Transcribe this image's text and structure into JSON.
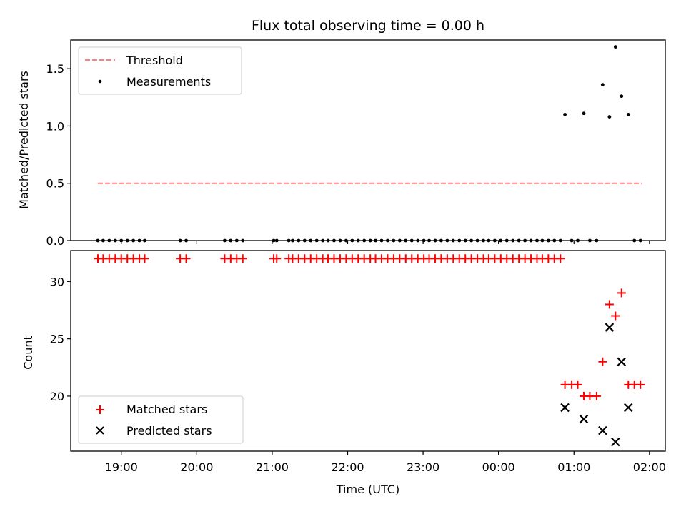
{
  "chart_data": [
    {
      "type": "scatter",
      "title": "Flux total observing time = 0.00 h",
      "xlabel": "",
      "ylabel": "Matched/Predicted stars",
      "ylim": [
        0,
        1.75
      ],
      "xlim": [
        -0.67,
        7.21
      ],
      "x_unit": "hours after 19:00 UTC",
      "yticks": [
        0.0,
        0.5,
        1.0,
        1.5
      ],
      "ytick_labels": [
        "0.0",
        "0.5",
        "1.0",
        "1.5"
      ],
      "legend_position": "top-left",
      "threshold": {
        "name": "Threshold",
        "y": 0.5,
        "x_range": [
          -0.31,
          6.9
        ],
        "color": "#ff7f7f",
        "style": "dashed"
      },
      "series": [
        {
          "name": "Measurements",
          "color": "#000000",
          "points": [
            [
              -0.31,
              0
            ],
            [
              -0.24,
              0
            ],
            [
              -0.16,
              0
            ],
            [
              -0.08,
              0
            ],
            [
              0.0,
              0
            ],
            [
              0.08,
              0
            ],
            [
              0.16,
              0
            ],
            [
              0.24,
              0
            ],
            [
              0.31,
              0
            ],
            [
              0.78,
              0
            ],
            [
              0.86,
              0
            ],
            [
              1.37,
              0
            ],
            [
              1.45,
              0
            ],
            [
              1.53,
              0
            ],
            [
              1.61,
              0
            ],
            [
              2.02,
              0
            ],
            [
              2.06,
              0
            ],
            [
              2.22,
              0
            ],
            [
              2.27,
              0
            ],
            [
              2.35,
              0
            ],
            [
              2.43,
              0
            ],
            [
              2.51,
              0
            ],
            [
              2.59,
              0
            ],
            [
              2.67,
              0
            ],
            [
              2.74,
              0
            ],
            [
              2.82,
              0
            ],
            [
              2.9,
              0
            ],
            [
              2.98,
              0
            ],
            [
              3.06,
              0
            ],
            [
              3.14,
              0
            ],
            [
              3.22,
              0
            ],
            [
              3.3,
              0
            ],
            [
              3.37,
              0
            ],
            [
              3.45,
              0
            ],
            [
              3.53,
              0
            ],
            [
              3.61,
              0
            ],
            [
              3.69,
              0
            ],
            [
              3.77,
              0
            ],
            [
              3.85,
              0
            ],
            [
              3.93,
              0
            ],
            [
              4.01,
              0
            ],
            [
              4.08,
              0
            ],
            [
              4.16,
              0
            ],
            [
              4.24,
              0
            ],
            [
              4.32,
              0
            ],
            [
              4.4,
              0
            ],
            [
              4.48,
              0
            ],
            [
              4.56,
              0
            ],
            [
              4.64,
              0
            ],
            [
              4.72,
              0
            ],
            [
              4.8,
              0
            ],
            [
              4.87,
              0
            ],
            [
              4.95,
              0
            ],
            [
              5.03,
              0
            ],
            [
              5.11,
              0
            ],
            [
              5.19,
              0
            ],
            [
              5.27,
              0
            ],
            [
              5.35,
              0
            ],
            [
              5.43,
              0
            ],
            [
              5.51,
              0
            ],
            [
              5.58,
              0
            ],
            [
              5.66,
              0
            ],
            [
              5.74,
              0
            ],
            [
              5.82,
              0
            ],
            [
              5.88,
              1.1
            ],
            [
              5.97,
              0
            ],
            [
              6.05,
              0
            ],
            [
              6.13,
              1.11
            ],
            [
              6.21,
              0
            ],
            [
              6.3,
              0
            ],
            [
              6.38,
              1.36
            ],
            [
              6.47,
              1.08
            ],
            [
              6.55,
              1.69
            ],
            [
              6.63,
              1.26
            ],
            [
              6.72,
              1.1
            ],
            [
              6.8,
              0
            ],
            [
              6.88,
              0
            ]
          ]
        }
      ]
    },
    {
      "type": "scatter",
      "title": "",
      "xlabel": "Time (UTC)",
      "ylabel": "Count",
      "ylim": [
        15.2,
        32.7
      ],
      "xlim": [
        -0.67,
        7.21
      ],
      "x_unit": "hours after 19:00 UTC",
      "xticks": [
        0,
        1,
        2,
        3,
        4,
        5,
        6,
        7
      ],
      "xtick_labels": [
        "19:00",
        "20:00",
        "21:00",
        "22:00",
        "23:00",
        "00:00",
        "01:00",
        "02:00"
      ],
      "yticks": [
        20,
        25,
        30
      ],
      "ytick_labels": [
        "20",
        "25",
        "30"
      ],
      "legend_position": "bottom-left",
      "series": [
        {
          "name": "Matched stars",
          "marker": "plus",
          "color": "#ff0000",
          "points": [
            [
              -0.31,
              32
            ],
            [
              -0.24,
              32
            ],
            [
              -0.16,
              32
            ],
            [
              -0.08,
              32
            ],
            [
              0.0,
              32
            ],
            [
              0.08,
              32
            ],
            [
              0.16,
              32
            ],
            [
              0.24,
              32
            ],
            [
              0.31,
              32
            ],
            [
              0.78,
              32
            ],
            [
              0.86,
              32
            ],
            [
              1.37,
              32
            ],
            [
              1.45,
              32
            ],
            [
              1.53,
              32
            ],
            [
              1.61,
              32
            ],
            [
              2.02,
              32
            ],
            [
              2.06,
              32
            ],
            [
              2.22,
              32
            ],
            [
              2.27,
              32
            ],
            [
              2.35,
              32
            ],
            [
              2.43,
              32
            ],
            [
              2.51,
              32
            ],
            [
              2.59,
              32
            ],
            [
              2.67,
              32
            ],
            [
              2.74,
              32
            ],
            [
              2.82,
              32
            ],
            [
              2.9,
              32
            ],
            [
              2.98,
              32
            ],
            [
              3.06,
              32
            ],
            [
              3.14,
              32
            ],
            [
              3.22,
              32
            ],
            [
              3.3,
              32
            ],
            [
              3.37,
              32
            ],
            [
              3.45,
              32
            ],
            [
              3.53,
              32
            ],
            [
              3.61,
              32
            ],
            [
              3.69,
              32
            ],
            [
              3.77,
              32
            ],
            [
              3.85,
              32
            ],
            [
              3.93,
              32
            ],
            [
              4.01,
              32
            ],
            [
              4.08,
              32
            ],
            [
              4.16,
              32
            ],
            [
              4.24,
              32
            ],
            [
              4.32,
              32
            ],
            [
              4.4,
              32
            ],
            [
              4.48,
              32
            ],
            [
              4.56,
              32
            ],
            [
              4.64,
              32
            ],
            [
              4.72,
              32
            ],
            [
              4.8,
              32
            ],
            [
              4.87,
              32
            ],
            [
              4.95,
              32
            ],
            [
              5.03,
              32
            ],
            [
              5.11,
              32
            ],
            [
              5.19,
              32
            ],
            [
              5.27,
              32
            ],
            [
              5.35,
              32
            ],
            [
              5.43,
              32
            ],
            [
              5.51,
              32
            ],
            [
              5.58,
              32
            ],
            [
              5.66,
              32
            ],
            [
              5.74,
              32
            ],
            [
              5.82,
              32
            ],
            [
              5.88,
              21
            ],
            [
              5.97,
              21
            ],
            [
              6.05,
              21
            ],
            [
              6.13,
              20
            ],
            [
              6.21,
              20
            ],
            [
              6.3,
              20
            ],
            [
              6.38,
              23
            ],
            [
              6.47,
              28
            ],
            [
              6.55,
              27
            ],
            [
              6.63,
              29
            ],
            [
              6.72,
              21
            ],
            [
              6.8,
              21
            ],
            [
              6.88,
              21
            ]
          ]
        },
        {
          "name": "Predicted stars",
          "marker": "x",
          "color": "#000000",
          "points": [
            [
              5.88,
              19
            ],
            [
              6.13,
              18
            ],
            [
              6.38,
              17
            ],
            [
              6.47,
              26
            ],
            [
              6.55,
              16
            ],
            [
              6.63,
              23
            ],
            [
              6.72,
              19
            ]
          ]
        }
      ]
    }
  ]
}
